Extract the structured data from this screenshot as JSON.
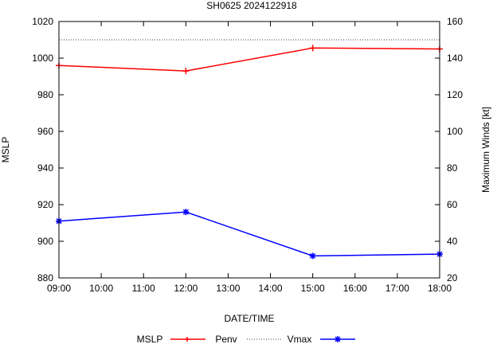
{
  "chart_data": {
    "type": "line",
    "title": "SH0625 2024122918",
    "xlabel": "DATE/TIME",
    "ylabel_left": "MSLP",
    "ylabel_right": "Maximum Winds [kt]",
    "x_ticks": [
      "09:00",
      "10:00",
      "11:00",
      "12:00",
      "13:00",
      "14:00",
      "15:00",
      "16:00",
      "17:00",
      "18:00"
    ],
    "x_range": [
      9,
      18
    ],
    "ylim_left": [
      880,
      1020
    ],
    "yticks_left": [
      880,
      900,
      920,
      940,
      960,
      980,
      1000,
      1020
    ],
    "ylim_right": [
      20,
      160
    ],
    "yticks_right": [
      20,
      40,
      60,
      80,
      100,
      120,
      140,
      160
    ],
    "series": [
      {
        "name": "MSLP",
        "axis": "left",
        "style": "none",
        "color": "#000000",
        "x": [],
        "values": []
      },
      {
        "name": "Penv",
        "axis": "left",
        "style": "line-plus",
        "color": "#ff0000",
        "x": [
          9,
          12,
          15,
          18
        ],
        "values": [
          996,
          993,
          1005.5,
          1005
        ]
      },
      {
        "name": "",
        "axis": "left",
        "style": "dotted",
        "color": "#000000",
        "x": [
          9,
          18
        ],
        "values": [
          1010,
          1010
        ]
      },
      {
        "name": "Vmax",
        "axis": "right",
        "style": "line-star",
        "color": "#0000ff",
        "x": [
          9,
          12,
          15,
          18
        ],
        "values": [
          51,
          56,
          32,
          33
        ]
      }
    ],
    "legend": {
      "placement": "bottom",
      "entries": [
        "MSLP",
        "Penv",
        "Vmax"
      ]
    }
  }
}
